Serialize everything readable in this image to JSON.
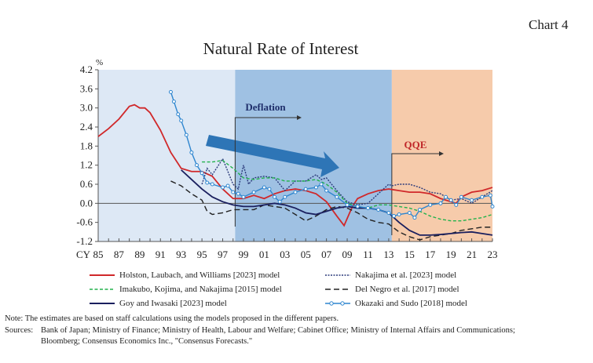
{
  "chart_label": "Chart 4",
  "chart_data": {
    "type": "line",
    "title": "Natural Rate of Interest",
    "ylabel": "%",
    "xlabel": "CY",
    "ylim": [
      -1.2,
      4.2
    ],
    "yticks": [
      "4.2",
      "3.6",
      "3.0",
      "2.4",
      "1.8",
      "1.2",
      "0.6",
      "0.0",
      "-0.6",
      "-1.2"
    ],
    "xlim": [
      1985,
      2023
    ],
    "xticks": [
      "85",
      "87",
      "89",
      "91",
      "93",
      "95",
      "97",
      "99",
      "01",
      "03",
      "05",
      "07",
      "09",
      "11",
      "13",
      "15",
      "17",
      "19",
      "21",
      "23"
    ],
    "periods": [
      {
        "from": 1985,
        "to": 1998.2,
        "color": "#dde8f5"
      },
      {
        "from": 1998.2,
        "to": 2013.3,
        "label": "Deflation",
        "color": "#9fc1e3"
      },
      {
        "from": 2013.3,
        "to": 2023,
        "label": "QQE",
        "color": "#f6cbab"
      }
    ],
    "series": [
      {
        "name": "Holston, Laubach, and Williams [2023] model",
        "color": "#d0282a",
        "style": "solid",
        "x": [
          1985,
          1986,
          1987,
          1988,
          1988.5,
          1989,
          1989.5,
          1990,
          1991,
          1992,
          1993,
          1994,
          1995,
          1996,
          1997,
          1998,
          1999,
          2000,
          2001,
          2002,
          2003,
          2004,
          2005,
          2006,
          2007,
          2008,
          2008.7,
          2009.5,
          2010,
          2011,
          2012,
          2013,
          2014,
          2015,
          2016,
          2017,
          2018,
          2019,
          2019.5,
          2020,
          2021,
          2022,
          2023
        ],
        "y": [
          2.1,
          2.35,
          2.65,
          3.05,
          3.1,
          3.0,
          3.0,
          2.85,
          2.3,
          1.6,
          1.1,
          1.0,
          1.0,
          0.85,
          0.45,
          0.15,
          0.15,
          0.25,
          0.15,
          0.3,
          0.4,
          0.45,
          0.4,
          0.3,
          0.05,
          -0.4,
          -0.7,
          -0.1,
          0.15,
          0.3,
          0.4,
          0.45,
          0.4,
          0.35,
          0.35,
          0.3,
          0.15,
          0.05,
          0.0,
          0.2,
          0.35,
          0.4,
          0.5
        ]
      },
      {
        "name": "Nakajima et al. [2023] model",
        "color": "#2b3a7a",
        "style": "dotted",
        "x": [
          1995,
          1995.5,
          1996,
          1997,
          1998,
          1998.5,
          1999,
          1999.5,
          2000,
          2001,
          2002,
          2003,
          2004,
          2005,
          2006,
          2006.5,
          2007,
          2008,
          2009,
          2010,
          2011,
          2012,
          2013,
          2013.3,
          2014,
          2015,
          2016,
          2017,
          2018,
          2019,
          2020,
          2021,
          2022,
          2023
        ],
        "y": [
          0.6,
          1.1,
          0.9,
          1.4,
          0.6,
          0.45,
          1.2,
          0.6,
          0.8,
          0.85,
          0.8,
          0.4,
          0.7,
          0.7,
          0.9,
          0.75,
          0.8,
          0.4,
          0.05,
          -0.05,
          0.0,
          0.3,
          0.6,
          0.55,
          0.6,
          0.6,
          0.5,
          0.35,
          0.3,
          0.1,
          0.15,
          0.0,
          0.2,
          0.4
        ]
      },
      {
        "name": "Imakubo, Kojima, and Nakajima [2015] model",
        "color": "#22b24c",
        "style": "dashed",
        "x": [
          1995,
          1996,
          1997,
          1998,
          1999,
          2000,
          2001,
          2002,
          2003,
          2004,
          2005,
          2006,
          2007,
          2008,
          2009,
          2010,
          2011,
          2012,
          2013,
          2014,
          2015,
          2016,
          2017,
          2018,
          2019,
          2020,
          2021,
          2022,
          2023
        ],
        "y": [
          1.3,
          1.3,
          1.35,
          1.1,
          0.8,
          0.75,
          0.8,
          0.8,
          0.7,
          0.7,
          0.7,
          0.75,
          0.6,
          0.35,
          0.0,
          -0.1,
          -0.15,
          -0.05,
          -0.05,
          -0.1,
          -0.15,
          -0.25,
          -0.4,
          -0.5,
          -0.55,
          -0.55,
          -0.5,
          -0.45,
          -0.35
        ]
      },
      {
        "name": "Del Negro et al. [2017] model",
        "color": "#222222",
        "style": "longdash",
        "x": [
          1992,
          1993,
          1994,
          1995,
          1995.5,
          1996,
          1997,
          1998,
          1999,
          2000,
          2001,
          2002,
          2003,
          2004,
          2005,
          2006,
          2007,
          2008,
          2009,
          2010,
          2011,
          2012,
          2013,
          2014,
          2015,
          2016,
          2017,
          2018,
          2019,
          2020,
          2021,
          2022,
          2023
        ],
        "y": [
          0.7,
          0.55,
          0.3,
          0.1,
          -0.25,
          -0.35,
          -0.3,
          -0.2,
          -0.2,
          -0.2,
          -0.05,
          -0.1,
          -0.15,
          -0.35,
          -0.55,
          -0.4,
          -0.2,
          -0.1,
          -0.15,
          -0.3,
          -0.5,
          -0.6,
          -0.65,
          -0.9,
          -1.05,
          -1.15,
          -1.05,
          -1.0,
          -0.95,
          -0.85,
          -0.8,
          -0.75,
          -0.75
        ]
      },
      {
        "name": "Goy and Iwasaki [2023] model",
        "color": "#1a1f5e",
        "style": "solid",
        "x": [
          1993,
          1994,
          1995,
          1996,
          1997,
          1998,
          1999,
          2000,
          2001,
          2002,
          2003,
          2004,
          2005,
          2006,
          2007,
          2008,
          2009,
          2010,
          2011,
          2012,
          2013,
          2014,
          2015,
          2016,
          2017,
          2018,
          2019,
          2020,
          2021,
          2022,
          2023
        ],
        "y": [
          1.05,
          0.75,
          0.45,
          0.2,
          0.05,
          -0.05,
          -0.1,
          -0.1,
          -0.05,
          0.0,
          -0.05,
          -0.15,
          -0.3,
          -0.35,
          -0.25,
          -0.15,
          -0.1,
          -0.15,
          -0.15,
          -0.2,
          -0.3,
          -0.6,
          -0.85,
          -1.0,
          -1.0,
          -0.98,
          -0.95,
          -0.92,
          -0.9,
          -0.95,
          -1.0
        ]
      },
      {
        "name": "Okazaki and Sudo [2018] model",
        "color": "#2f86cf",
        "style": "marker",
        "x": [
          1992,
          1992.3,
          1992.7,
          1993,
          1993.5,
          1994,
          1994.5,
          1995,
          1995.5,
          1996,
          1997,
          1997.5,
          1998,
          1998.5,
          1999,
          2000,
          2001,
          2001.5,
          2002,
          2002.5,
          2003,
          2004,
          2005,
          2006,
          2006.5,
          2007,
          2008,
          2009,
          2010,
          2011,
          2012,
          2013,
          2013.5,
          2014,
          2015,
          2015.5,
          2016,
          2017,
          2018,
          2018.5,
          2019,
          2019.5,
          2020,
          2021,
          2022,
          2022.8,
          2023
        ],
        "y": [
          3.5,
          3.2,
          2.8,
          2.6,
          2.15,
          1.6,
          1.2,
          0.95,
          0.65,
          0.6,
          0.5,
          0.55,
          0.35,
          0.3,
          0.2,
          0.35,
          0.5,
          0.45,
          0.2,
          0.05,
          0.2,
          0.35,
          0.45,
          0.5,
          0.6,
          0.4,
          0.2,
          -0.05,
          -0.1,
          -0.15,
          -0.2,
          -0.3,
          -0.4,
          -0.35,
          -0.3,
          -0.45,
          -0.2,
          -0.05,
          0.0,
          0.2,
          0.1,
          -0.05,
          0.2,
          0.1,
          0.2,
          0.25,
          -0.1
        ]
      }
    ],
    "legend": "bottom"
  },
  "notes": {
    "note": "Note: The estimates are based on staff calculations using the models proposed in the different papers.",
    "sources_label": "Sources:",
    "sources_1": "Bank of Japan; Ministry of Finance; Ministry of Health, Labour and Welfare; Cabinet Office; Ministry of Internal Affairs and Communications;",
    "sources_2": "Bloomberg; Consensus Economics Inc., \"Consensus Forecasts.\""
  }
}
